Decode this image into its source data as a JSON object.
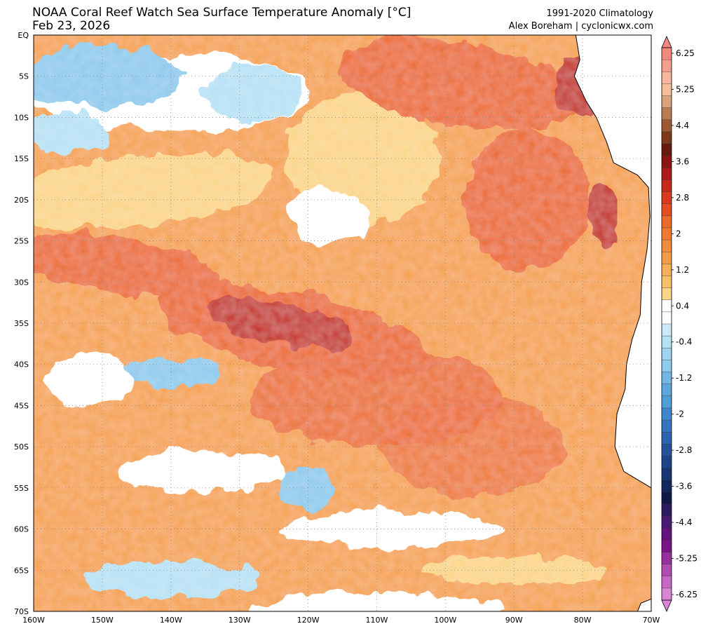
{
  "header": {
    "title": "NOAA Coral Reef Watch Sea Surface Temperature Anomaly [°C]",
    "date": "Feb 23, 2026",
    "climatology": "1991-2020 Climatology",
    "credit": "Alex Boreham | cyclonicwx.com"
  },
  "map": {
    "lat_labels": [
      "EQ",
      "5S",
      "10S",
      "15S",
      "20S",
      "25S",
      "30S",
      "35S",
      "40S",
      "45S",
      "50S",
      "55S",
      "60S",
      "65S",
      "70S"
    ],
    "lon_labels": [
      "160W",
      "150W",
      "140W",
      "130W",
      "120W",
      "110W",
      "100W",
      "90W",
      "80W",
      "70W"
    ],
    "lat_range": [
      0,
      -70
    ],
    "lon_range": [
      -160,
      -70
    ],
    "gridlines": true,
    "field": "sea surface temperature anomaly",
    "units": "°C",
    "colors": {
      "strong_warm": "#c62a1c",
      "warm": "#ec6a2a",
      "mild_warm": "#f6a24e",
      "weak_warm": "#fbd688",
      "neutral": "#ffffff",
      "weak_cool": "#b7e2f5",
      "cool": "#8fcbee",
      "strong_cool": "#4f9fd9",
      "land": "#ffffff",
      "coastline": "#000000"
    }
  },
  "colorbar": {
    "tick_labels": [
      "6.25",
      "5.25",
      "4.4",
      "3.6",
      "2.8",
      "2",
      "1.2",
      "0.4",
      "-0.4",
      "-1.2",
      "-2",
      "-2.8",
      "-3.6",
      "-4.4",
      "-5.25",
      "-6.25"
    ],
    "levels": [
      6.25,
      5.25,
      4.4,
      3.6,
      2.8,
      2,
      1.2,
      0.4,
      -0.4,
      -1.2,
      -2,
      -2.8,
      -3.6,
      -4.4,
      -5.25,
      -6.25
    ],
    "colors": [
      "#f08a7e",
      "#f5a08d",
      "#f8b69c",
      "#f4bf9a",
      "#d9a37c",
      "#b97d56",
      "#9b5a34",
      "#7d3a1a",
      "#691a10",
      "#8c1412",
      "#ac1c18",
      "#c62a1c",
      "#d83a20",
      "#e44c24",
      "#ec6a2a",
      "#f07a30",
      "#f38c3a",
      "#f59c46",
      "#f7ae58",
      "#f9c06c",
      "#fbd688",
      "#ffffff",
      "#ffffff",
      "#cbe9f7",
      "#b7e2f5",
      "#9fd5f2",
      "#8fcbee",
      "#74b6e6",
      "#5ea6dd",
      "#4f9fd9",
      "#3f87cb",
      "#3575bd",
      "#2c63ad",
      "#24539c",
      "#1c4489",
      "#173573",
      "#12275e",
      "#0f1a4a",
      "#2b1a5e",
      "#4a1a72",
      "#64137f",
      "#7a1588",
      "#97309b",
      "#b04cb0",
      "#c768c4",
      "#d885d5"
    ]
  }
}
